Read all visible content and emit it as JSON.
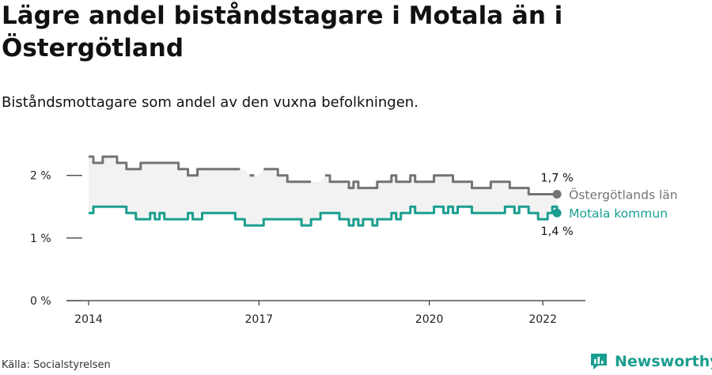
{
  "title": "Lägre andel biståndstagare i Motala än i Östergötland",
  "subtitle": "Biståndsmottagare som andel av den vuxna befolkningen.",
  "source": "Källa: Socialstyrelsen",
  "brand": {
    "name": "Newsworthy",
    "logo_icon": "newsworthy-logo-icon"
  },
  "colors": {
    "lan": "#737373",
    "kommun": "#1a9e8f",
    "band": "#f2f2f2",
    "axis": "#333333"
  },
  "chart_data": {
    "type": "line",
    "ylim": [
      0,
      2.3
    ],
    "yticks": [
      0,
      1,
      2
    ],
    "ytick_labels": [
      "0 %",
      "1 %",
      "2 %"
    ],
    "xlim": [
      2014,
      2022.75
    ],
    "xticks": [
      2014,
      2017,
      2020,
      2022
    ],
    "xtick_labels": [
      "2014",
      "2017",
      "2020",
      "2022"
    ],
    "x_start": 2014,
    "x_step_months": 1,
    "series": [
      {
        "name": "Östergötlands län",
        "end_label": "1,7 %",
        "values": [
          2.3,
          2.2,
          2.2,
          2.3,
          2.3,
          2.3,
          2.2,
          2.2,
          2.1,
          2.1,
          2.1,
          2.2,
          2.2,
          2.2,
          2.2,
          2.2,
          2.2,
          2.2,
          2.2,
          2.1,
          2.1,
          2.0,
          2.0,
          2.1,
          2.1,
          2.1,
          2.1,
          2.1,
          2.1,
          2.1,
          2.1,
          2.1,
          2.1,
          null,
          2.0,
          2.0,
          null,
          2.1,
          2.1,
          2.1,
          2.0,
          2.0,
          1.9,
          1.9,
          1.9,
          1.9,
          1.9,
          1.9,
          null,
          null,
          2.0,
          1.9,
          1.9,
          1.9,
          1.9,
          1.8,
          1.9,
          1.8,
          1.8,
          1.8,
          1.8,
          1.9,
          1.9,
          1.9,
          2.0,
          1.9,
          1.9,
          1.9,
          2.0,
          1.9,
          1.9,
          1.9,
          1.9,
          2.0,
          2.0,
          2.0,
          2.0,
          1.9,
          1.9,
          1.9,
          1.9,
          1.8,
          1.8,
          1.8,
          1.8,
          1.9,
          1.9,
          1.9,
          1.9,
          1.8,
          1.8,
          1.8,
          1.8,
          1.7,
          1.7,
          1.7,
          1.7,
          1.7,
          1.7,
          1.7
        ]
      },
      {
        "name": "Motala kommun",
        "end_label": "1,4 %",
        "values": [
          1.4,
          1.5,
          1.5,
          1.5,
          1.5,
          1.5,
          1.5,
          1.5,
          1.4,
          1.4,
          1.3,
          1.3,
          1.3,
          1.4,
          1.3,
          1.4,
          1.3,
          1.3,
          1.3,
          1.3,
          1.3,
          1.4,
          1.3,
          1.3,
          1.4,
          1.4,
          1.4,
          1.4,
          1.4,
          1.4,
          1.4,
          1.3,
          1.3,
          1.2,
          1.2,
          1.2,
          1.2,
          1.3,
          1.3,
          1.3,
          1.3,
          1.3,
          1.3,
          1.3,
          1.3,
          1.2,
          1.2,
          1.3,
          1.3,
          1.4,
          1.4,
          1.4,
          1.4,
          1.3,
          1.3,
          1.2,
          1.3,
          1.2,
          1.3,
          1.3,
          1.2,
          1.3,
          1.3,
          1.3,
          1.4,
          1.3,
          1.4,
          1.4,
          1.5,
          1.4,
          1.4,
          1.4,
          1.4,
          1.5,
          1.5,
          1.4,
          1.5,
          1.4,
          1.5,
          1.5,
          1.5,
          1.4,
          1.4,
          1.4,
          1.4,
          1.4,
          1.4,
          1.4,
          1.5,
          1.5,
          1.4,
          1.5,
          1.5,
          1.4,
          1.4,
          1.3,
          1.3,
          1.4,
          1.5,
          1.4
        ]
      }
    ]
  }
}
